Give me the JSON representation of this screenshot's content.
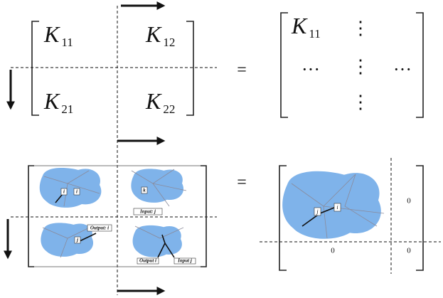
{
  "top": {
    "left_matrix": [
      [
        {
          "symbol": "K",
          "sub": "11"
        },
        {
          "symbol": "K",
          "sub": "12"
        }
      ],
      [
        {
          "symbol": "K",
          "sub": "21"
        },
        {
          "symbol": "K",
          "sub": "22"
        }
      ]
    ],
    "equals": "=",
    "right_matrix": {
      "entry": {
        "symbol": "K",
        "sub": "11"
      },
      "vdots": [
        "⋮",
        "⋮",
        "⋮"
      ],
      "hdots": [
        "···",
        "···"
      ]
    }
  },
  "bottom": {
    "panels": [
      {
        "labels": [
          "i",
          "i"
        ]
      },
      {
        "labels": [
          "k",
          "Input: j"
        ]
      },
      {
        "labels": [
          "Output: i",
          "j"
        ]
      },
      {
        "labels": [
          "Output i",
          "Input j"
        ]
      }
    ],
    "equals": "=",
    "right_matrix": {
      "labels": [
        "j",
        "i"
      ],
      "zeros": [
        "0",
        "0",
        "0"
      ]
    }
  }
}
